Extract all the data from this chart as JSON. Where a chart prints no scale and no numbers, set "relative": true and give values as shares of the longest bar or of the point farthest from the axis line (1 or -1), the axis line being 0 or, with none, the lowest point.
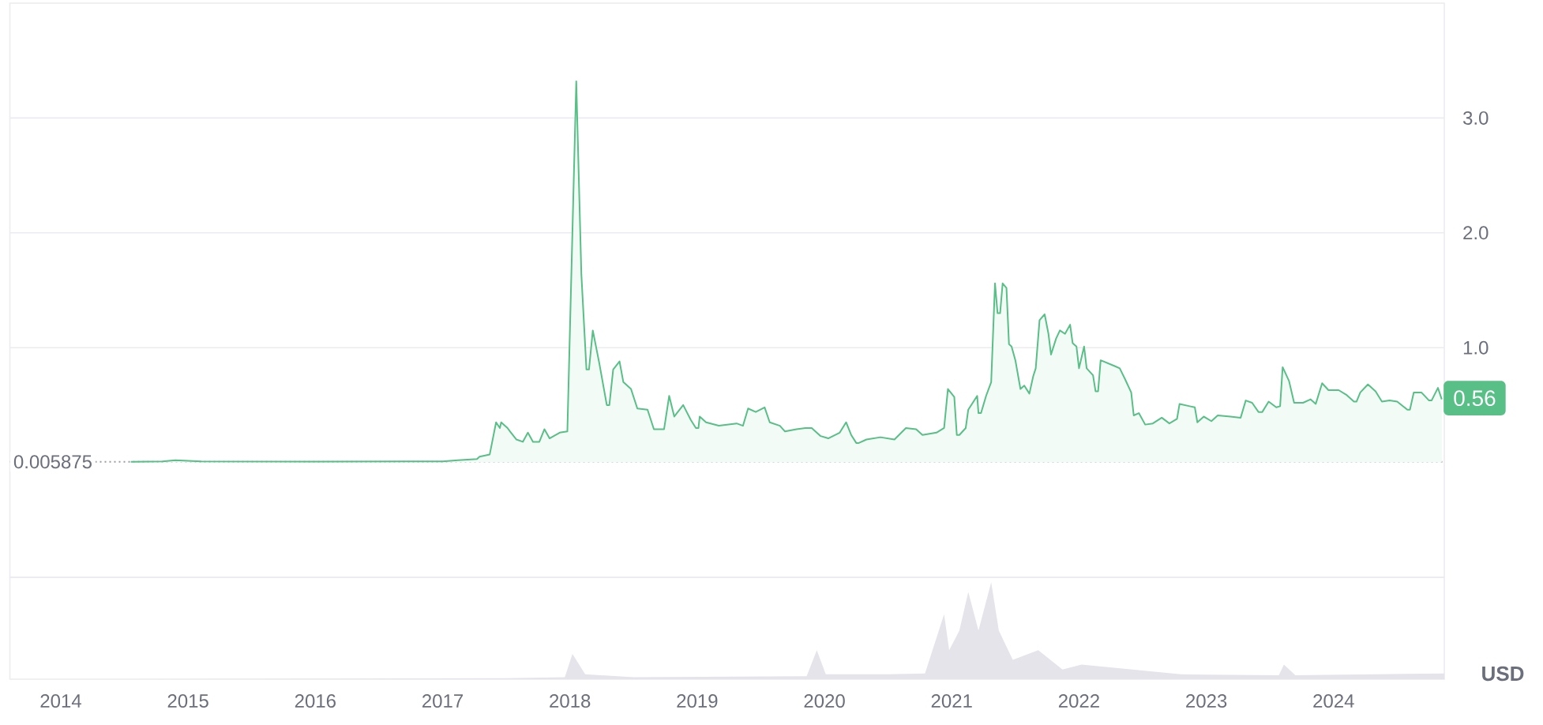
{
  "chart_data": [
    {
      "type": "area",
      "color": "#58bf87",
      "ylabel": "USD",
      "grid": "y",
      "marker": "none",
      "tick_labels": "y",
      "xlim": [
        2013.6,
        2024.87
      ],
      "xticks": [
        2014,
        2015,
        2016,
        2017,
        2018,
        2019,
        2020,
        2021,
        2022,
        2023,
        2024
      ],
      "ylim": [
        -1,
        4
      ],
      "yticks": [
        {
          "value": -1,
          "label": null
        },
        {
          "value": 1,
          "label": "1.0"
        },
        {
          "value": 2,
          "label": "2.0"
        },
        {
          "value": 3,
          "label": "3.0"
        }
      ],
      "ref_lines": [
        {
          "axis": "y",
          "value": 0.005875,
          "label": "0.005875",
          "color": "#9a9ca6",
          "line_style": "dotted"
        }
      ],
      "annotations": [
        {
          "text": "0.56",
          "x": 2024.85,
          "y": 0.56
        }
      ],
      "x": [
        2014.55,
        2014.8,
        2014.9,
        2015.1,
        2016.0,
        2017.0,
        2017.12,
        2017.27,
        2017.29,
        2017.37,
        2017.42,
        2017.45,
        2017.46,
        2017.51,
        2017.53,
        2017.58,
        2017.63,
        2017.67,
        2017.71,
        2017.76,
        2017.8,
        2017.84,
        2017.92,
        2017.98,
        2018.05,
        2018.09,
        2018.13,
        2018.15,
        2018.18,
        2018.23,
        2018.29,
        2018.31,
        2018.34,
        2018.39,
        2018.42,
        2018.48,
        2018.53,
        2018.61,
        2018.66,
        2018.74,
        2018.78,
        2018.82,
        2018.89,
        2018.95,
        2018.99,
        2019.01,
        2019.02,
        2019.07,
        2019.17,
        2019.31,
        2019.36,
        2019.4,
        2019.46,
        2019.53,
        2019.57,
        2019.65,
        2019.69,
        2019.78,
        2019.85,
        2019.9,
        2019.97,
        2020.03,
        2020.12,
        2020.17,
        2020.21,
        2020.25,
        2020.27,
        2020.33,
        2020.44,
        2020.55,
        2020.64,
        2020.72,
        2020.77,
        2020.88,
        2020.94,
        2020.97,
        2021.02,
        2021.04,
        2021.06,
        2021.11,
        2021.13,
        2021.2,
        2021.21,
        2021.23,
        2021.27,
        2021.31,
        2021.34,
        2021.36,
        2021.38,
        2021.4,
        2021.43,
        2021.45,
        2021.47,
        2021.5,
        2021.54,
        2021.57,
        2021.61,
        2021.64,
        2021.66,
        2021.69,
        2021.73,
        2021.76,
        2021.78,
        2021.82,
        2021.85,
        2021.89,
        2021.93,
        2021.95,
        2021.98,
        2022.0,
        2022.04,
        2022.06,
        2022.11,
        2022.13,
        2022.15,
        2022.17,
        2022.28,
        2022.32,
        2022.36,
        2022.41,
        2022.43,
        2022.47,
        2022.52,
        2022.58,
        2022.65,
        2022.71,
        2022.77,
        2022.79,
        2022.87,
        2022.91,
        2022.93,
        2022.98,
        2023.04,
        2023.09,
        2023.19,
        2023.27,
        2023.31,
        2023.36,
        2023.41,
        2023.44,
        2023.49,
        2023.55,
        2023.58,
        2023.6,
        2023.65,
        2023.69,
        2023.76,
        2023.82,
        2023.86,
        2023.91,
        2023.96,
        2024.04,
        2024.1,
        2024.16,
        2024.18,
        2024.21,
        2024.27,
        2024.33,
        2024.38,
        2024.44,
        2024.5,
        2024.58,
        2024.6,
        2024.63,
        2024.69,
        2024.75,
        2024.77,
        2024.82,
        2024.85
      ],
      "values": [
        0.005,
        0.01,
        0.02,
        0.01,
        0.008,
        0.01,
        0.02,
        0.03,
        0.05,
        0.07,
        0.35,
        0.3,
        0.35,
        0.3,
        0.27,
        0.2,
        0.18,
        0.26,
        0.18,
        0.18,
        0.29,
        0.21,
        0.26,
        0.27,
        3.32,
        1.64,
        0.81,
        0.81,
        1.15,
        0.87,
        0.5,
        0.5,
        0.81,
        0.88,
        0.7,
        0.64,
        0.47,
        0.46,
        0.29,
        0.29,
        0.58,
        0.4,
        0.5,
        0.37,
        0.3,
        0.3,
        0.4,
        0.35,
        0.32,
        0.34,
        0.32,
        0.47,
        0.44,
        0.48,
        0.35,
        0.32,
        0.27,
        0.29,
        0.3,
        0.3,
        0.23,
        0.21,
        0.26,
        0.35,
        0.24,
        0.17,
        0.17,
        0.2,
        0.22,
        0.2,
        0.3,
        0.29,
        0.24,
        0.26,
        0.3,
        0.64,
        0.57,
        0.24,
        0.24,
        0.3,
        0.46,
        0.58,
        0.43,
        0.43,
        0.58,
        0.7,
        1.56,
        1.3,
        1.3,
        1.56,
        1.52,
        1.03,
        1.01,
        0.89,
        0.64,
        0.67,
        0.6,
        0.75,
        0.82,
        1.24,
        1.29,
        1.12,
        0.94,
        1.08,
        1.15,
        1.12,
        1.2,
        1.04,
        1.01,
        0.82,
        1.01,
        0.82,
        0.76,
        0.62,
        0.62,
        0.89,
        0.84,
        0.82,
        0.73,
        0.61,
        0.41,
        0.43,
        0.33,
        0.34,
        0.39,
        0.34,
        0.38,
        0.51,
        0.49,
        0.48,
        0.35,
        0.4,
        0.36,
        0.41,
        0.4,
        0.39,
        0.54,
        0.52,
        0.44,
        0.44,
        0.53,
        0.48,
        0.49,
        0.83,
        0.71,
        0.52,
        0.52,
        0.55,
        0.51,
        0.69,
        0.63,
        0.63,
        0.59,
        0.53,
        0.53,
        0.61,
        0.68,
        0.62,
        0.53,
        0.54,
        0.53,
        0.46,
        0.46,
        0.61,
        0.61,
        0.54,
        0.54,
        0.65,
        0.55
      ]
    },
    {
      "type": "area",
      "relative": true,
      "color": "#e4e4ea",
      "tick_labels": "x",
      "xlim": [
        2013.6,
        2024.87
      ],
      "xticks": [
        2014,
        2015,
        2016,
        2017,
        2018,
        2019,
        2020,
        2021,
        2022,
        2023,
        2024
      ],
      "x": [
        2014.53,
        2017.5,
        2017.96,
        2018.02,
        2018.12,
        2018.5,
        2019.86,
        2019.94,
        2020.01,
        2020.5,
        2020.79,
        2020.94,
        2020.98,
        2021.06,
        2021.13,
        2021.21,
        2021.31,
        2021.37,
        2021.48,
        2021.68,
        2021.87,
        2022.02,
        2022.8,
        2023.57,
        2023.61,
        2023.7,
        2024.34,
        2024.87
      ],
      "values": [
        0,
        0.01,
        0.02,
        0.26,
        0.05,
        0.02,
        0.03,
        0.3,
        0.05,
        0.05,
        0.06,
        0.67,
        0.3,
        0.5,
        0.9,
        0.5,
        1,
        0.5,
        0.2,
        0.3,
        0.1,
        0.15,
        0.05,
        0.04,
        0.15,
        0.04,
        0.05,
        0.06
      ]
    }
  ]
}
